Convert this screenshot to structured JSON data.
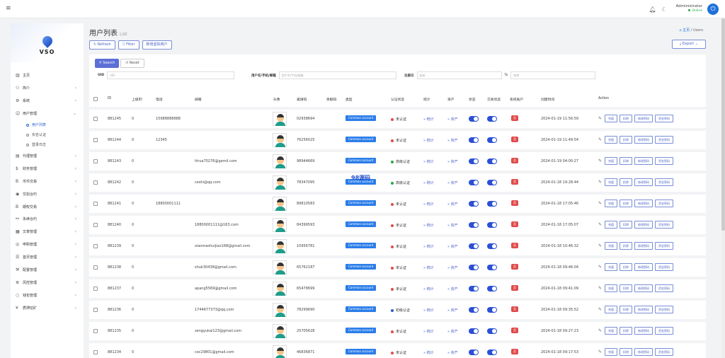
{
  "topbar": {
    "admin_name": "Administrator",
    "admin_status": "Online"
  },
  "sidebar": {
    "logo_text": "VSO",
    "items": [
      {
        "label": "主页",
        "icon": "bar-chart-icon",
        "arrow": ""
      },
      {
        "label": "简介",
        "icon": "group-icon",
        "arrow": "‹"
      },
      {
        "label": "系统",
        "icon": "gear-icon",
        "arrow": "‹"
      },
      {
        "label": "用户管理",
        "icon": "user-icon",
        "arrow": "⌄"
      }
    ],
    "sub_items": [
      {
        "label": "用户列表",
        "active": true
      },
      {
        "label": "实名认证",
        "active": false
      },
      {
        "label": "登录日志",
        "active": false
      }
    ],
    "items_after": [
      {
        "label": "代理管理",
        "icon": "id-card-icon",
        "arrow": "‹"
      },
      {
        "label": "财务管理",
        "icon": "dollar-icon",
        "arrow": "‹"
      },
      {
        "label": "币币交易",
        "icon": "bitcoin-icon",
        "arrow": "‹"
      },
      {
        "label": "交割合约",
        "icon": "coin-icon",
        "arrow": "‹"
      },
      {
        "label": "期权交易",
        "icon": "bitcoin-icon",
        "arrow": "‹"
      },
      {
        "label": "永续合约",
        "icon": "link-icon",
        "arrow": "‹"
      },
      {
        "label": "文章管理",
        "icon": "table-icon",
        "arrow": "‹"
      },
      {
        "label": "申购管理",
        "icon": "target-icon",
        "arrow": "‹"
      },
      {
        "label": "首页管理",
        "icon": "menu-icon",
        "arrow": "‹"
      },
      {
        "label": "配置管理",
        "icon": "wrench-icon",
        "arrow": "‹"
      },
      {
        "label": "风控管理",
        "icon": "list-icon",
        "arrow": "‹"
      },
      {
        "label": "钱包管理",
        "icon": "circle-icon",
        "arrow": "‹"
      },
      {
        "label": "质押挖矿",
        "icon": "yen-icon",
        "arrow": "‹"
      }
    ]
  },
  "page": {
    "title": "用户列表",
    "subtitle": "List",
    "crumb_home": "主页",
    "crumb_sep": "/",
    "crumb_current": "Users"
  },
  "toolbar": {
    "refresh": "Refresh",
    "filter": "Filter",
    "add": "新增虚拟用户",
    "export": "Export"
  },
  "search": {
    "search_btn": "Search",
    "reset_btn": "Reset",
    "uid_label": "UID",
    "uid_placeholder": "UID",
    "user_label": "用户名/手机/邮箱",
    "user_placeholder": "用户名/手机/邮箱",
    "date_label": "注册日",
    "date_from": "起始",
    "date_to": "结束",
    "date_sep": "To"
  },
  "table": {
    "headers": [
      "ID",
      "上级ID",
      "电话",
      "邮箱",
      "头像",
      "邀请码",
      "余额码",
      "类型",
      "认证状态",
      "统计",
      "资产",
      "状态",
      "交易状态",
      "系统账户",
      "创建时间",
      "Action"
    ],
    "account_type": "Common account",
    "stat_link": "统计",
    "asset_link": "资产",
    "flag": "否",
    "actions": [
      "充值",
      "扣除",
      "修改密码",
      "资金密码"
    ],
    "rows": [
      {
        "id": "881245",
        "pid": "0",
        "phone": "15988888888",
        "email": "",
        "code": "02938694",
        "auth": "未认证",
        "auth_color": "#e04a4a",
        "time": "2024-01-19 11:56:59"
      },
      {
        "id": "881244",
        "pid": "0",
        "phone": "12345",
        "email": "",
        "code": "76256025",
        "auth": "未认证",
        "auth_color": "#e04a4a",
        "time": "2024-01-19 11:49:54"
      },
      {
        "id": "881243",
        "pid": "0",
        "phone": "",
        "email": "hhua70276@gamil.com",
        "code": "98944669",
        "auth": "高级认证",
        "auth_color": "#28a745",
        "time": "2024-01-19 04:00:27"
      },
      {
        "id": "881242",
        "pid": "0",
        "phone": "",
        "email": "ceshi@qq.com",
        "code": "78347095",
        "auth": "高级认证",
        "auth_color": "#28a745",
        "time": "2024-01-18 19:28:44"
      },
      {
        "id": "881241",
        "pid": "0",
        "phone": "18800001111",
        "email": "",
        "code": "89810583",
        "auth": "未认证",
        "auth_color": "#e04a4a",
        "time": "2024-01-18 17:05:46"
      },
      {
        "id": "881240",
        "pid": "0",
        "phone": "",
        "email": "18800001111@163.com",
        "code": "84399593",
        "auth": "未认证",
        "auth_color": "#e04a4a",
        "time": "2024-01-18 17:05:07"
      },
      {
        "id": "881239",
        "pid": "0",
        "phone": "",
        "email": "xiaomashuijiao168@gmail.com",
        "code": "10956781",
        "auth": "未认证",
        "auth_color": "#e04a4a",
        "time": "2024-01-18 10:46:32"
      },
      {
        "id": "881238",
        "pid": "0",
        "phone": "",
        "email": "shuk30438@gmail.com",
        "code": "65762187",
        "auth": "未认证",
        "auth_color": "#e04a4a",
        "time": "2024-01-18 09:46:04"
      },
      {
        "id": "881237",
        "pid": "0",
        "phone": "",
        "email": "apang5569@gmail.com",
        "code": "65478699",
        "auth": "未认证",
        "auth_color": "#e04a4a",
        "time": "2024-01-18 09:41:09"
      },
      {
        "id": "881236",
        "pid": "0",
        "phone": "",
        "email": "1744677373@qq.com",
        "code": "78299690",
        "auth": "初级认证",
        "auth_color": "#2b5fcf",
        "time": "2024-01-18 09:35:52"
      },
      {
        "id": "881235",
        "pid": "0",
        "phone": "",
        "email": "zengyukai123@gmail.com",
        "code": "25705628",
        "auth": "未认证",
        "auth_color": "#e04a4a",
        "time": "2024-01-18 09:27:23"
      },
      {
        "id": "881234",
        "pid": "0",
        "phone": "",
        "email": "coc29801@gmail.com",
        "code": "46836871",
        "auth": "未认证",
        "auth_color": "#e04a4a",
        "time": "2024-01-18 09:17:53"
      }
    ]
  },
  "watermark": "98源码"
}
